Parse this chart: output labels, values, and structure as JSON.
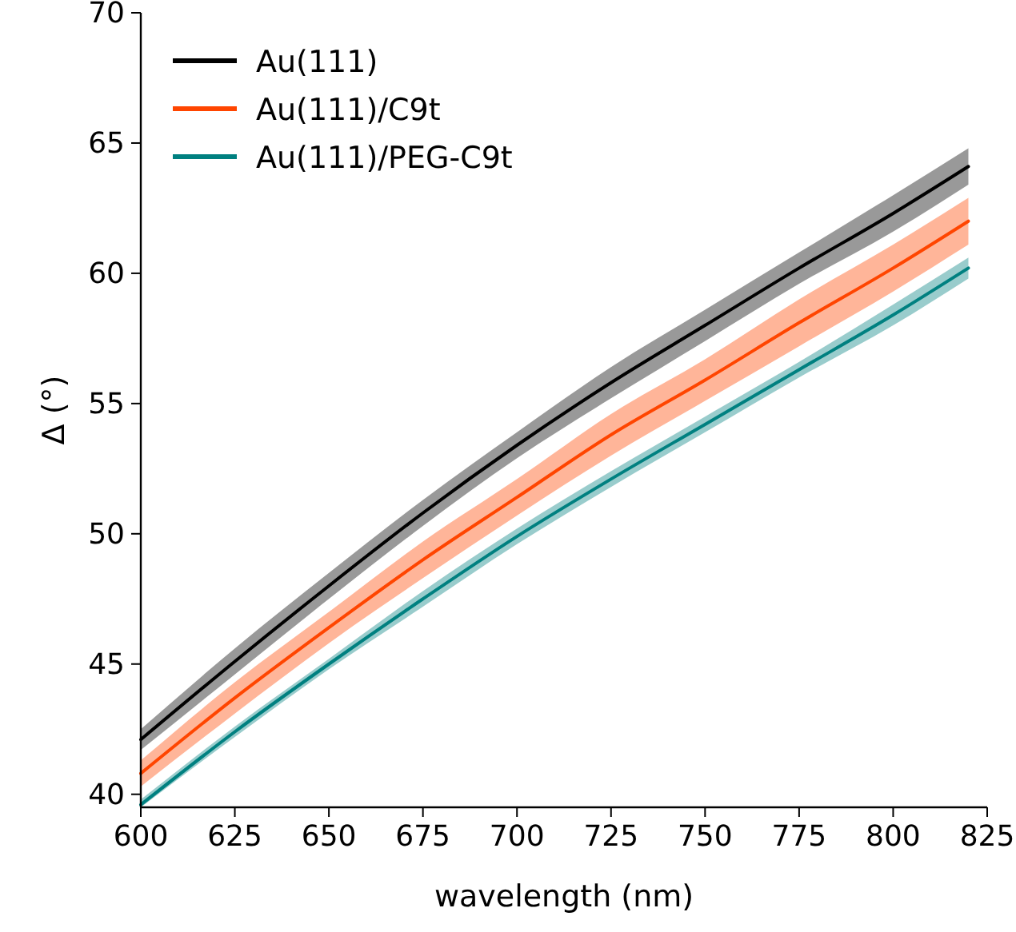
{
  "chart_data": {
    "type": "line",
    "xlabel": "wavelength (nm)",
    "ylabel": "Δ (°)",
    "x": [
      600,
      625,
      650,
      675,
      700,
      725,
      750,
      775,
      800,
      820
    ],
    "xlim": [
      600,
      825
    ],
    "xticks": [
      600,
      625,
      650,
      675,
      700,
      725,
      750,
      775,
      800,
      825
    ],
    "ylim": [
      39.5,
      70
    ],
    "yticks": [
      40,
      45,
      50,
      55,
      60,
      65,
      70
    ],
    "grid": false,
    "legend": "top left",
    "marker": "none",
    "line_style": "solid",
    "series": [
      {
        "name": "Au(111)",
        "color": "#000000",
        "values": [
          42.1,
          45.1,
          48.0,
          50.8,
          53.4,
          55.8,
          58.0,
          60.2,
          62.3,
          64.1
        ],
        "lower": [
          41.7,
          44.6,
          47.5,
          50.3,
          52.9,
          55.2,
          57.4,
          59.6,
          61.6,
          63.4
        ],
        "upper": [
          42.5,
          45.6,
          48.5,
          51.3,
          53.9,
          56.4,
          58.6,
          60.8,
          63.0,
          64.8
        ]
      },
      {
        "name": "Au(111)/C9t",
        "color": "#ff4500",
        "values": [
          40.8,
          43.7,
          46.4,
          49.0,
          51.4,
          53.8,
          55.9,
          58.1,
          60.2,
          62.0
        ],
        "lower": [
          40.3,
          43.1,
          45.8,
          48.3,
          50.7,
          53.0,
          55.1,
          57.2,
          59.3,
          61.1
        ],
        "upper": [
          41.3,
          44.3,
          47.0,
          49.7,
          52.1,
          54.6,
          56.7,
          59.0,
          61.1,
          62.9
        ]
      },
      {
        "name": "Au(111)/PEG-C9t",
        "color": "#008080",
        "values": [
          39.6,
          42.4,
          45.0,
          47.5,
          49.9,
          52.1,
          54.2,
          56.3,
          58.4,
          60.2
        ],
        "lower": [
          39.5,
          42.2,
          44.8,
          47.2,
          49.6,
          51.8,
          53.9,
          56.0,
          58.0,
          59.8
        ],
        "upper": [
          39.8,
          42.6,
          45.2,
          47.8,
          50.2,
          52.4,
          54.5,
          56.6,
          58.8,
          60.6
        ]
      }
    ]
  }
}
